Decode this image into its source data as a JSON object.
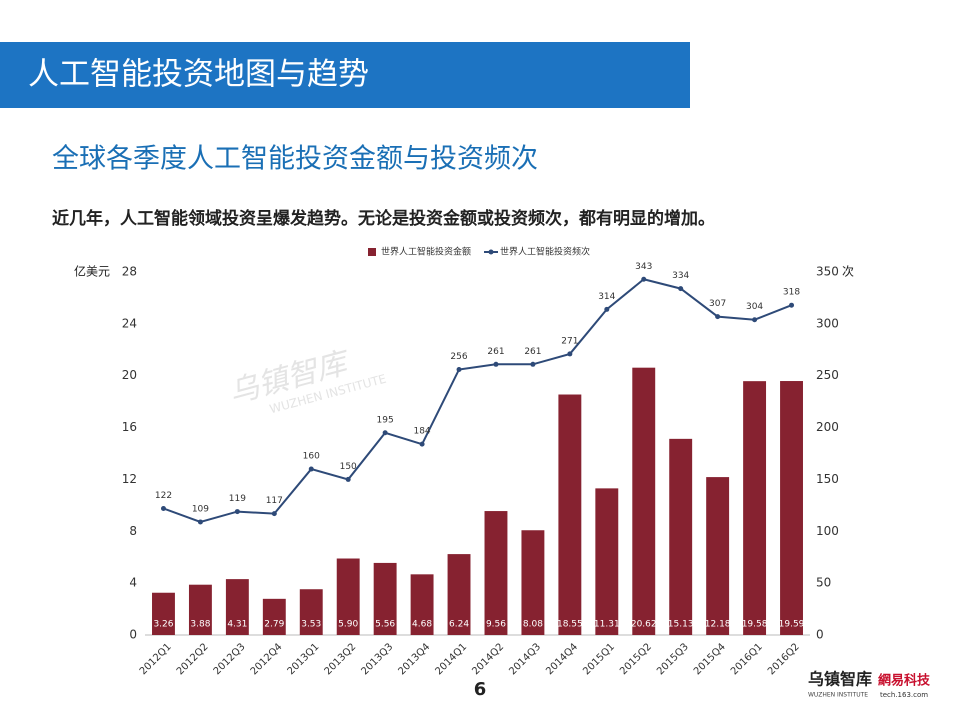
{
  "slide": {
    "banner": "人工智能投资地图与趋势",
    "heading": "全球各季度人工智能投资金额与投资频次",
    "description": "近几年，人工智能领域投资呈爆发趋势。无论是投资金额或投资频次，都有明显的增加。",
    "page_number": "6",
    "watermark": "乌镇智库",
    "watermark_sub": "WUZHEN INSTITUTE",
    "logo_left": "乌镇智库",
    "logo_left_sub": "WUZHEN INSTITUTE",
    "logo_right": "網易科技",
    "logo_right_sub": "tech.163.com"
  },
  "chart_data": {
    "type": "bar-line",
    "legend": "top",
    "grid": false,
    "ylabel": "亿美元",
    "y2label": "次",
    "categories": [
      "2012Q1",
      "2012Q2",
      "2012Q3",
      "2012Q4",
      "2013Q1",
      "2013Q2",
      "2013Q3",
      "2013Q4",
      "2014Q1",
      "2014Q2",
      "2014Q3",
      "2014Q4",
      "2015Q1",
      "2015Q2",
      "2015Q3",
      "2015Q4",
      "2016Q1",
      "2016Q2"
    ],
    "ylim": [
      0,
      28
    ],
    "yticks": [
      0,
      4,
      8,
      12,
      16,
      20,
      24,
      28
    ],
    "y2lim": [
      0,
      350
    ],
    "y2ticks": [
      0,
      50,
      100,
      150,
      200,
      250,
      300,
      350
    ],
    "series": [
      {
        "name": "世界人工智能投资金额",
        "type": "bar",
        "color": "#862230",
        "values": [
          3.26,
          3.88,
          4.31,
          2.79,
          3.53,
          5.9,
          5.56,
          4.68,
          6.24,
          9.56,
          8.08,
          18.55,
          11.31,
          20.62,
          15.13,
          12.18,
          19.58,
          19.59
        ],
        "value_labels": [
          "3.26",
          "3.88",
          "4.31",
          "2.79",
          "3.53",
          "5.90",
          "5.56",
          "4.68",
          "6.24",
          "9.56",
          "8.08",
          "18.55",
          "11.31",
          "20.62",
          "15.13",
          "12.18",
          "19.58",
          "19.59"
        ]
      },
      {
        "name": "世界人工智能投资频次",
        "type": "line",
        "axis": "y2",
        "color": "#2e4a78",
        "values": [
          122,
          109,
          119,
          117,
          160,
          150,
          195,
          184,
          256,
          261,
          261,
          271,
          314,
          343,
          334,
          307,
          304,
          318
        ]
      }
    ]
  }
}
